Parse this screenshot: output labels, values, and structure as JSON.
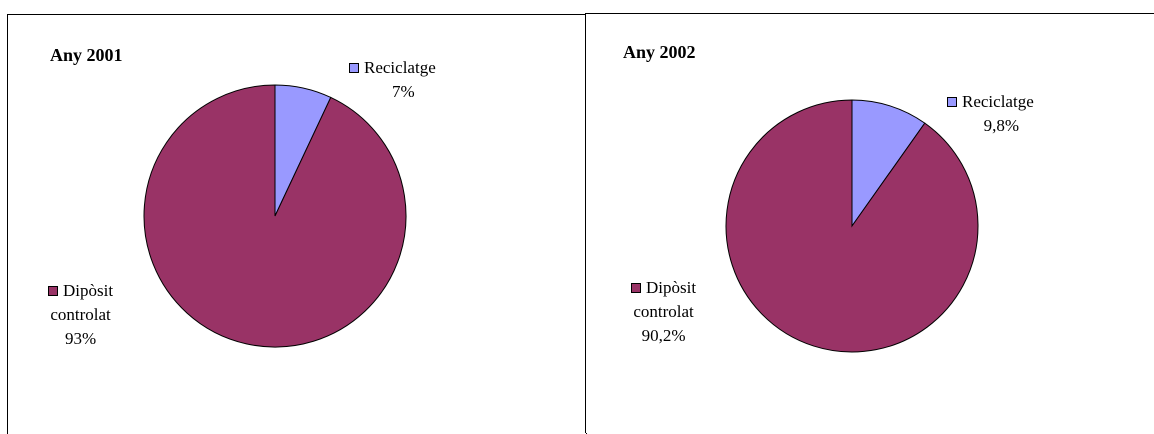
{
  "chart_data": [
    {
      "type": "pie",
      "title": "Any 2001",
      "slices": [
        {
          "label": "Reciclatge",
          "value": 7,
          "value_label": "7%",
          "color": "#9999ff"
        },
        {
          "label": "Dipòsit controlat",
          "value": 93,
          "value_label": "93%",
          "color": "#993366"
        }
      ]
    },
    {
      "type": "pie",
      "title": "Any 2002",
      "slices": [
        {
          "label": "Reciclatge",
          "value": 9.8,
          "value_label": "9,8%",
          "color": "#9999ff"
        },
        {
          "label": "Dipòsit controlat",
          "value": 90.2,
          "value_label": "90,2%",
          "color": "#993366"
        }
      ]
    }
  ],
  "labels": {
    "chart1": {
      "recycle_name": "Reciclatge",
      "dump_line1": "Dipòsit",
      "dump_line2": "controlat"
    },
    "chart2": {
      "recycle_name": "Reciclatge",
      "dump_line1": "Dipòsit",
      "dump_line2": "controlat"
    }
  }
}
